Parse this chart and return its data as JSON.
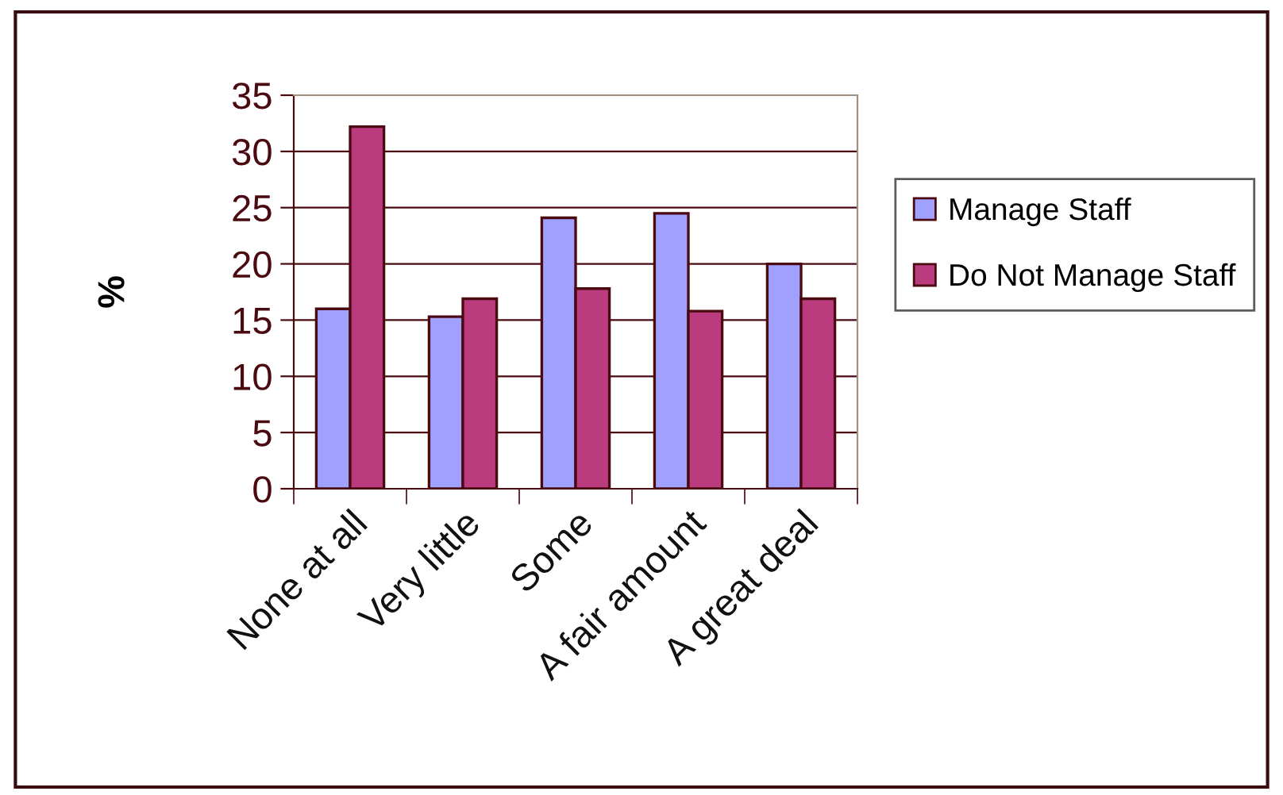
{
  "chart_data": {
    "type": "bar",
    "ylabel": "%",
    "categories": [
      "None at all",
      "Very little",
      "Some",
      "A fair amount",
      "A great deal"
    ],
    "series": [
      {
        "name": "Manage Staff",
        "color": "#a0a0ff",
        "values": [
          16,
          15.3,
          24.1,
          24.5,
          20
        ]
      },
      {
        "name": "Do Not Manage Staff",
        "color": "#bb3c7e",
        "values": [
          32.2,
          16.9,
          17.8,
          15.8,
          16.9
        ]
      }
    ],
    "ylim": [
      0,
      35
    ],
    "yticks": [
      0,
      5,
      10,
      15,
      20,
      25,
      30,
      35
    ],
    "grid": "y",
    "legend": "right"
  }
}
